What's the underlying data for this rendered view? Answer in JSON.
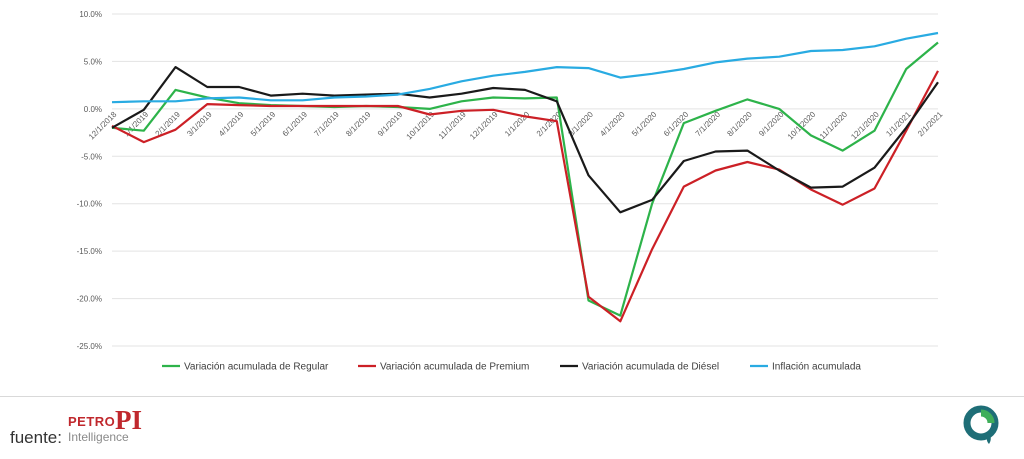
{
  "chart_data": {
    "type": "line",
    "x": [
      "12/1/2018",
      "1/1/2019",
      "2/1/2019",
      "3/1/2019",
      "4/1/2019",
      "5/1/2019",
      "6/1/2019",
      "7/1/2019",
      "8/1/2019",
      "9/1/2019",
      "10/1/2019",
      "11/1/2019",
      "12/1/2019",
      "1/1/2020",
      "2/1/2020",
      "3/1/2020",
      "4/1/2020",
      "5/1/2020",
      "6/1/2020",
      "7/1/2020",
      "8/1/2020",
      "9/1/2020",
      "10/1/2020",
      "11/1/2020",
      "12/1/2020",
      "1/1/2021",
      "2/1/2021"
    ],
    "ylim": [
      -25,
      10
    ],
    "yticks": [
      10,
      5,
      0,
      -5,
      -10,
      -15,
      -20,
      -25
    ],
    "ytick_labels": [
      "10.0%",
      "5.0%",
      "0.0%",
      "-5.0%",
      "-10.0%",
      "-15.0%",
      "-20.0%",
      "-25.0%"
    ],
    "grid": true,
    "legend_position": "bottom",
    "series": [
      {
        "name": "Variación acumulada de Regular",
        "color": "#2db34a",
        "values": [
          -2.0,
          -2.3,
          2.0,
          1.2,
          0.6,
          0.4,
          0.3,
          0.2,
          0.3,
          0.2,
          0.0,
          0.8,
          1.2,
          1.1,
          1.2,
          -20.2,
          -21.8,
          -10.0,
          -1.5,
          -0.2,
          1.0,
          0.0,
          -2.8,
          -4.4,
          -2.3,
          4.2,
          7.0
        ]
      },
      {
        "name": "Variación acumulada de Premium",
        "color": "#cc2026",
        "values": [
          -1.8,
          -3.5,
          -2.2,
          0.5,
          0.4,
          0.3,
          0.3,
          0.3,
          0.3,
          0.3,
          -0.6,
          -0.2,
          -0.1,
          -0.8,
          -1.3,
          -19.8,
          -22.4,
          -14.8,
          -8.2,
          -6.5,
          -5.6,
          -6.4,
          -8.5,
          -10.1,
          -8.4,
          -2.3,
          4.0
        ]
      },
      {
        "name": "Variación acumulada de Diésel",
        "color": "#1a1a1a",
        "values": [
          -2.0,
          -0.1,
          4.4,
          2.3,
          2.3,
          1.4,
          1.6,
          1.4,
          1.5,
          1.6,
          1.2,
          1.6,
          2.2,
          2.0,
          0.8,
          -7.0,
          -10.9,
          -9.6,
          -5.5,
          -4.5,
          -4.4,
          -6.5,
          -8.3,
          -8.2,
          -6.2,
          -2.0,
          2.8
        ]
      },
      {
        "name": "Inflación acumulada",
        "color": "#29abe2",
        "values": [
          0.7,
          0.8,
          0.8,
          1.1,
          1.2,
          0.9,
          0.9,
          1.2,
          1.3,
          1.5,
          2.1,
          2.9,
          3.5,
          3.9,
          4.4,
          4.3,
          3.3,
          3.7,
          4.2,
          4.9,
          5.3,
          5.5,
          6.1,
          6.2,
          6.6,
          7.4,
          8.0
        ]
      }
    ]
  },
  "footer": {
    "source_label": "fuente:",
    "logo_petro": "PETRO",
    "logo_pi": "PI",
    "logo_intelligence": "Intelligence"
  }
}
